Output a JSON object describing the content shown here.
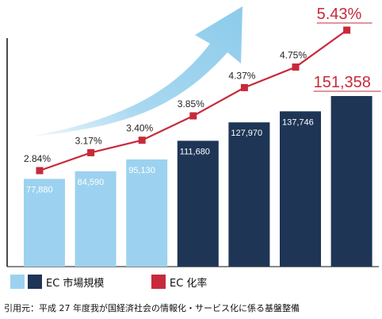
{
  "chart_data": {
    "type": "bar",
    "series": [
      {
        "name": "EC 市場規模",
        "values": [
          77880,
          84590,
          95130,
          111680,
          127970,
          137746,
          151358
        ],
        "labels": [
          "77,880",
          "84,590",
          "95,130",
          "111,680",
          "127,970",
          "137,746",
          "151,358"
        ],
        "colors": [
          "#9cd2ef",
          "#9cd2ef",
          "#9cd2ef",
          "#1e3556",
          "#1e3556",
          "#1e3556",
          "#1e3556"
        ]
      },
      {
        "name": "EC 化率",
        "type": "line",
        "values": [
          2.84,
          3.17,
          3.4,
          3.85,
          4.37,
          4.75,
          5.43
        ],
        "labels": [
          "2.84%",
          "3.17%",
          "3.40%",
          "3.85%",
          "4.37%",
          "4.75%",
          "5.43%"
        ],
        "color": "#c72a3b"
      }
    ],
    "grid": false
  },
  "legend": {
    "market_label": "EC 市場規模",
    "rate_label": "EC 化率",
    "market_light_color": "#9cd2ef",
    "market_dark_color": "#1e3556",
    "rate_color": "#c72a3b"
  },
  "source": "引用元：平成 27 年度我が国経済社会の情報化・サービス化に係る基盤整備",
  "arrow_color": "#8ccbeb"
}
